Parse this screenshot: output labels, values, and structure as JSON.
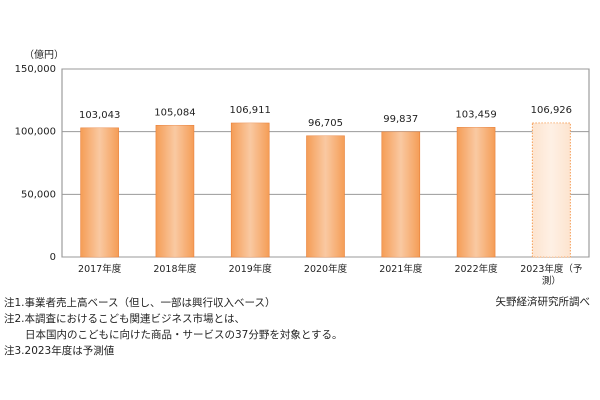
{
  "chart_data": {
    "type": "bar",
    "y_label": "（億円）",
    "categories": [
      "2017年度",
      "2018年度",
      "2019年度",
      "2020年度",
      "2021年度",
      "2022年度",
      "2023年度（予測）"
    ],
    "values": [
      103043,
      105084,
      106911,
      96705,
      99837,
      103459,
      106926
    ],
    "value_labels": [
      "103,043",
      "105,084",
      "106,911",
      "96,705",
      "99,837",
      "103,459",
      "106,926"
    ],
    "colors": [
      "#f59d56",
      "#f59d56",
      "#f59d56",
      "#f59d56",
      "#f59d56",
      "#f59d56",
      "#fde4cf"
    ],
    "border_styles": [
      "solid",
      "solid",
      "solid",
      "solid",
      "solid",
      "solid",
      "dotted"
    ],
    "ylim": [
      0,
      150000
    ],
    "yticks": [
      0,
      {
        "value": 50000,
        "label": "50,000"
      },
      {
        "value": 100000,
        "label": "100,000"
      },
      {
        "value": 150000,
        "label": "150,000"
      }
    ],
    "grid": true,
    "notes": [
      "注1.事業者売上高ベース（但し、一部は興行収入ベース）",
      "注2.本調査におけるこども関連ビジネス市場とは、",
      "　　日本国内のこどもに向けた商品・サービスの37分野を対象とする。",
      "注3.2023年度は予測値"
    ],
    "source": "矢野経済研究所調べ"
  }
}
